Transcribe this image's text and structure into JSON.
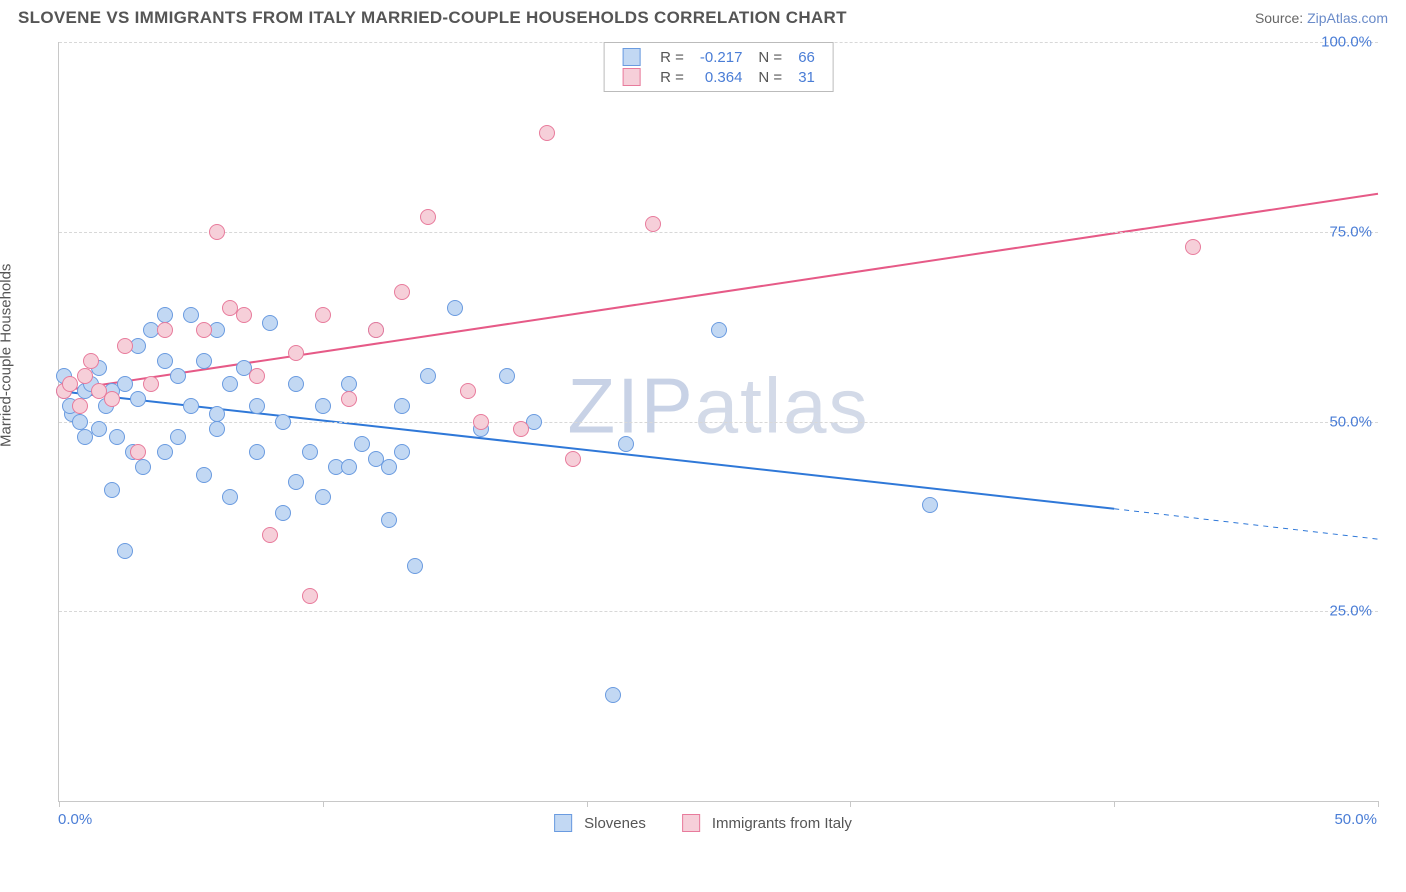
{
  "title": "SLOVENE VS IMMIGRANTS FROM ITALY MARRIED-COUPLE HOUSEHOLDS CORRELATION CHART",
  "source_label": "Source:",
  "source_name": "ZipAtlas.com",
  "watermark": "ZIPatlas",
  "ylabel": "Married-couple Households",
  "chart": {
    "type": "scatter",
    "xlim": [
      0,
      50
    ],
    "ylim": [
      0,
      100
    ],
    "ytick_values": [
      25,
      50,
      75,
      100
    ],
    "ytick_labels": [
      "25.0%",
      "50.0%",
      "75.0%",
      "100.0%"
    ],
    "xtick_labels": [
      "0.0%",
      "50.0%"
    ],
    "grid_style": "dashed",
    "grid_color": "#d8d8d8",
    "axis_color": "#c8c8c8",
    "background_color": "#ffffff",
    "x_tick_positions": [
      0,
      10,
      20,
      30,
      40,
      50
    ],
    "series": [
      {
        "key": "slovenes",
        "label": "Slovenes",
        "marker_fill": "#c2d8f3",
        "marker_stroke": "#6a9be0",
        "marker_radius": 8,
        "line_color": "#2f78d8",
        "line_width": 2,
        "R": "-0.217",
        "N": "66",
        "trend": {
          "x1": 0,
          "y1": 54,
          "x2": 40,
          "y2": 38.5,
          "dash_after_x": 40,
          "x3": 50,
          "y3": 34.5
        },
        "points": [
          [
            0.2,
            54
          ],
          [
            0.2,
            56
          ],
          [
            0.5,
            51
          ],
          [
            0.4,
            52
          ],
          [
            0.8,
            50
          ],
          [
            1.0,
            54
          ],
          [
            1.2,
            55
          ],
          [
            1.0,
            48
          ],
          [
            1.5,
            49
          ],
          [
            1.5,
            57
          ],
          [
            1.8,
            52
          ],
          [
            2.2,
            48
          ],
          [
            2.0,
            54
          ],
          [
            2.5,
            55
          ],
          [
            2.0,
            41
          ],
          [
            2.8,
            46
          ],
          [
            3.0,
            53
          ],
          [
            3.2,
            44
          ],
          [
            3.5,
            62
          ],
          [
            4.0,
            64
          ],
          [
            4.0,
            46
          ],
          [
            4.5,
            48
          ],
          [
            4.5,
            56
          ],
          [
            5.0,
            52
          ],
          [
            5.0,
            64
          ],
          [
            5.5,
            43
          ],
          [
            6.0,
            62
          ],
          [
            6.0,
            51
          ],
          [
            6.5,
            55
          ],
          [
            6.5,
            40
          ],
          [
            7.0,
            57
          ],
          [
            7.5,
            46
          ],
          [
            8.0,
            63
          ],
          [
            8.5,
            38
          ],
          [
            9.0,
            55
          ],
          [
            9.5,
            46
          ],
          [
            10.0,
            52
          ],
          [
            10.0,
            40
          ],
          [
            2.5,
            33
          ],
          [
            11.0,
            55
          ],
          [
            11.5,
            47
          ],
          [
            12.0,
            45
          ],
          [
            12.0,
            62
          ],
          [
            12.5,
            37
          ],
          [
            13.0,
            46
          ],
          [
            13.5,
            31
          ],
          [
            14.0,
            56
          ],
          [
            15.0,
            65
          ],
          [
            16.0,
            49
          ],
          [
            17.0,
            56
          ],
          [
            18.0,
            50
          ],
          [
            21.5,
            47
          ],
          [
            21.0,
            14
          ],
          [
            25.0,
            62
          ],
          [
            33.0,
            39
          ],
          [
            4.0,
            58
          ],
          [
            3.0,
            60
          ],
          [
            5.5,
            58
          ],
          [
            6.0,
            49
          ],
          [
            7.5,
            52
          ],
          [
            8.5,
            50
          ],
          [
            9.0,
            42
          ],
          [
            10.5,
            44
          ],
          [
            13.0,
            52
          ],
          [
            11.0,
            44
          ],
          [
            12.5,
            44
          ]
        ]
      },
      {
        "key": "italy",
        "label": "Immigrants from Italy",
        "marker_fill": "#f6cfd9",
        "marker_stroke": "#e87b9c",
        "marker_radius": 8,
        "line_color": "#e65a87",
        "line_width": 2,
        "R": "0.364",
        "N": "31",
        "trend": {
          "x1": 0,
          "y1": 54,
          "x2": 50,
          "y2": 80,
          "dash_after_x": 50
        },
        "points": [
          [
            0.2,
            54
          ],
          [
            0.4,
            55
          ],
          [
            0.8,
            52
          ],
          [
            1.0,
            56
          ],
          [
            1.2,
            58
          ],
          [
            1.5,
            54
          ],
          [
            2.0,
            53
          ],
          [
            2.5,
            60
          ],
          [
            3.0,
            46
          ],
          [
            3.5,
            55
          ],
          [
            4.0,
            62
          ],
          [
            5.5,
            62
          ],
          [
            6.0,
            75
          ],
          [
            6.5,
            65
          ],
          [
            7.0,
            64
          ],
          [
            7.5,
            56
          ],
          [
            8.0,
            35
          ],
          [
            9.0,
            59
          ],
          [
            9.5,
            27
          ],
          [
            10.0,
            64
          ],
          [
            11.0,
            53
          ],
          [
            12.0,
            62
          ],
          [
            13.0,
            67
          ],
          [
            14.0,
            77
          ],
          [
            15.5,
            54
          ],
          [
            16.0,
            50
          ],
          [
            17.5,
            49
          ],
          [
            18.5,
            88
          ],
          [
            19.5,
            45
          ],
          [
            22.5,
            76
          ],
          [
            43.0,
            73
          ]
        ]
      }
    ],
    "legend_top": {
      "columns": [
        "R",
        "N"
      ]
    },
    "legend_bottom_labels": [
      "Slovenes",
      "Immigrants from Italy"
    ]
  },
  "colors": {
    "title": "#555555",
    "axis_label": "#555555",
    "tick_label": "#4a7dd6",
    "source_link": "#6a8bc9"
  }
}
